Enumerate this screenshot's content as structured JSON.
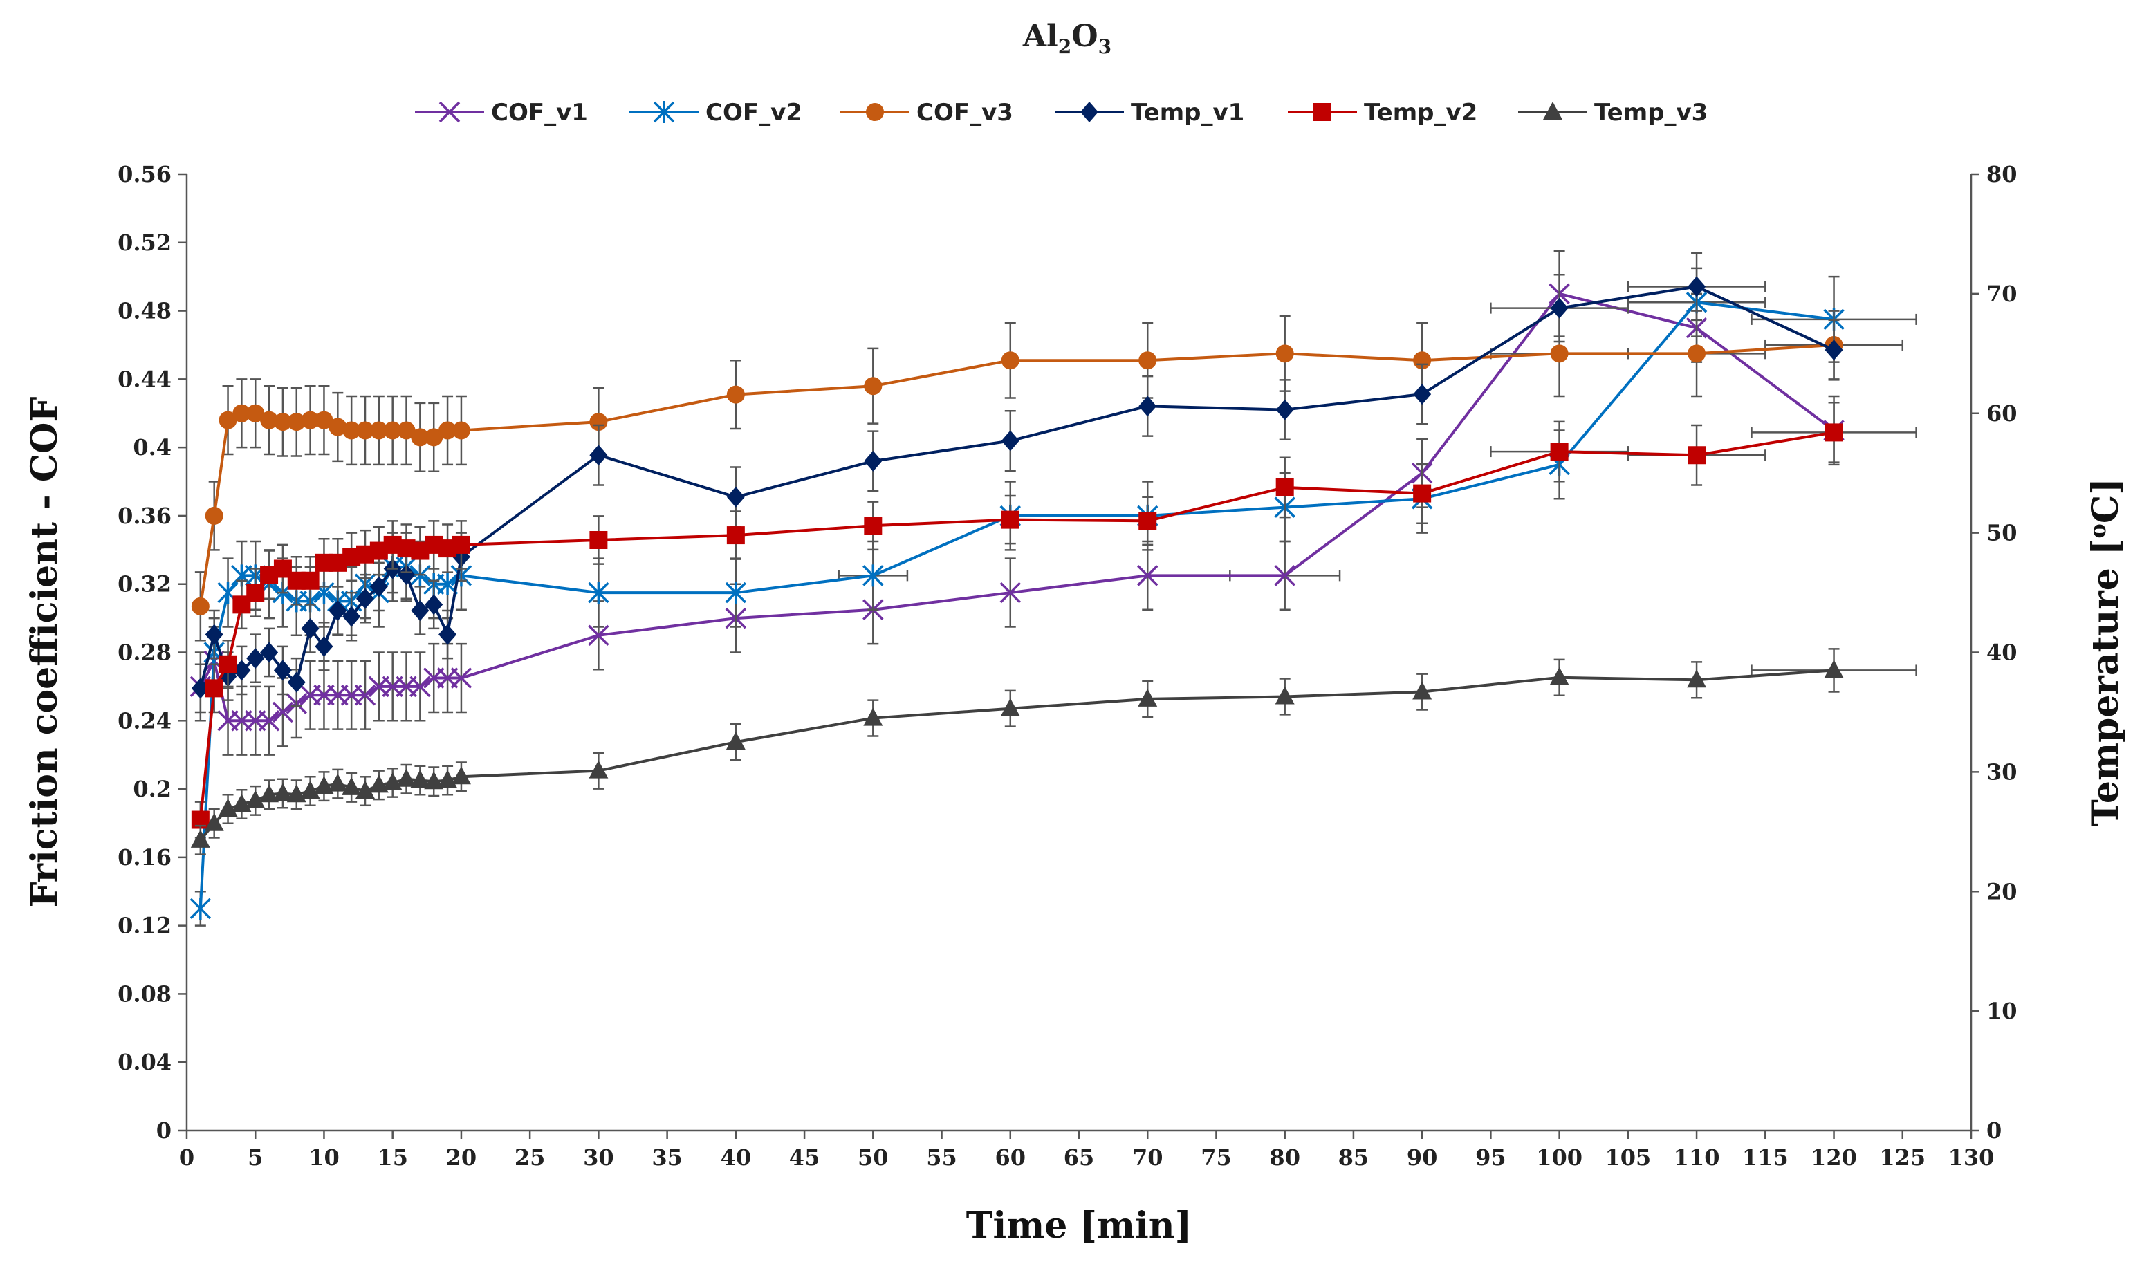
{
  "chart_data": {
    "type": "line",
    "title": "Al",
    "title_sub1": "2",
    "title_mid": "O",
    "title_sub2": "3",
    "xlabel": "Time [min]",
    "ylabel_left": "Friction coefficient - COF",
    "ylabel_right_prefix": "Temperature [",
    "ylabel_right_sup": "o",
    "ylabel_right_suffix": "C]",
    "xlim": [
      0,
      130
    ],
    "ylim_left": [
      0,
      0.56
    ],
    "ylim_right": [
      0,
      80
    ],
    "x_ticks": [
      "0",
      "5",
      "10",
      "15",
      "20",
      "25",
      "30",
      "35",
      "40",
      "45",
      "50",
      "55",
      "60",
      "65",
      "70",
      "75",
      "80",
      "85",
      "90",
      "95",
      "100",
      "105",
      "110",
      "115",
      "120",
      "125",
      "130"
    ],
    "y_left_ticks": [
      "0",
      "0.04",
      "0.08",
      "0.12",
      "0.16",
      "0.2",
      "0.24",
      "0.28",
      "0.32",
      "0.36",
      "0.4",
      "0.44",
      "0.48",
      "0.52",
      "0.56"
    ],
    "y_right_ticks": [
      "0",
      "10",
      "20",
      "30",
      "40",
      "50",
      "60",
      "70",
      "80"
    ],
    "series": [
      {
        "name": "COF_v1",
        "axis": "left",
        "color": "#7030A0",
        "marker": "x",
        "x": [
          1,
          2,
          3,
          4,
          5,
          6,
          7,
          8,
          9,
          10,
          11,
          12,
          13,
          14,
          15,
          16,
          17,
          18,
          19,
          20,
          30,
          40,
          50,
          60,
          70,
          80,
          90,
          100,
          110,
          120
        ],
        "y": [
          0.26,
          0.275,
          0.24,
          0.24,
          0.24,
          0.24,
          0.245,
          0.25,
          0.255,
          0.255,
          0.255,
          0.255,
          0.255,
          0.26,
          0.26,
          0.26,
          0.26,
          0.265,
          0.265,
          0.265,
          0.29,
          0.3,
          0.305,
          0.315,
          0.325,
          0.325,
          0.385,
          0.49,
          0.47,
          0.41
        ],
        "yerr": [
          0.02,
          0.02,
          0.02,
          0.02,
          0.02,
          0.02,
          0.02,
          0.02,
          0.02,
          0.02,
          0.02,
          0.02,
          0.02,
          0.02,
          0.02,
          0.02,
          0.02,
          0.02,
          0.02,
          0.02,
          0.02,
          0.02,
          0.02,
          0.02,
          0.02,
          0.02,
          0.02,
          0.025,
          0.02,
          0.02
        ],
        "xerr": [
          0,
          0,
          0,
          0,
          0,
          0,
          0,
          0,
          0,
          0,
          0,
          0,
          0,
          0,
          0,
          0,
          0,
          0,
          0,
          0,
          0,
          0,
          0,
          0,
          0,
          4,
          0,
          0,
          0,
          0
        ]
      },
      {
        "name": "COF_v2",
        "axis": "left",
        "color": "#0070C0",
        "marker": "asterisk",
        "x": [
          1,
          2,
          3,
          4,
          5,
          6,
          7,
          8,
          9,
          10,
          11,
          12,
          13,
          14,
          15,
          16,
          17,
          18,
          19,
          20,
          30,
          40,
          50,
          60,
          70,
          80,
          90,
          100,
          110,
          120
        ],
        "y": [
          0.13,
          0.28,
          0.315,
          0.325,
          0.325,
          0.32,
          0.315,
          0.31,
          0.31,
          0.315,
          0.31,
          0.31,
          0.32,
          0.315,
          0.33,
          0.33,
          0.325,
          0.32,
          0.32,
          0.325,
          0.315,
          0.315,
          0.325,
          0.36,
          0.36,
          0.365,
          0.37,
          0.39,
          0.485,
          0.475
        ],
        "yerr": [
          0.01,
          0.02,
          0.02,
          0.02,
          0.02,
          0.02,
          0.02,
          0.02,
          0.02,
          0.02,
          0.02,
          0.02,
          0.02,
          0.02,
          0.02,
          0.02,
          0.02,
          0.02,
          0.02,
          0.02,
          0.02,
          0.02,
          0.02,
          0.02,
          0.02,
          0.02,
          0.02,
          0.02,
          0.02,
          0.025
        ],
        "xerr": [
          0,
          0,
          0,
          0,
          0,
          0,
          0,
          0,
          0,
          0,
          0,
          0,
          0,
          0,
          0,
          0,
          0,
          0,
          0,
          0,
          0,
          0,
          2.5,
          0,
          0,
          0,
          0,
          0,
          5,
          6
        ]
      },
      {
        "name": "COF_v3",
        "axis": "left",
        "color": "#C55A11",
        "marker": "circle",
        "x": [
          1,
          2,
          3,
          4,
          5,
          6,
          7,
          8,
          9,
          10,
          11,
          12,
          13,
          14,
          15,
          16,
          17,
          18,
          19,
          20,
          30,
          40,
          50,
          60,
          70,
          80,
          90,
          100,
          110,
          120
        ],
        "y": [
          0.307,
          0.36,
          0.416,
          0.42,
          0.42,
          0.416,
          0.415,
          0.415,
          0.416,
          0.416,
          0.412,
          0.41,
          0.41,
          0.41,
          0.41,
          0.41,
          0.406,
          0.406,
          0.41,
          0.41,
          0.415,
          0.431,
          0.436,
          0.451,
          0.451,
          0.455,
          0.451,
          0.455,
          0.455,
          0.46
        ],
        "yerr": [
          0.02,
          0.02,
          0.02,
          0.02,
          0.02,
          0.02,
          0.02,
          0.02,
          0.02,
          0.02,
          0.02,
          0.02,
          0.02,
          0.02,
          0.02,
          0.02,
          0.02,
          0.02,
          0.02,
          0.02,
          0.02,
          0.02,
          0.022,
          0.022,
          0.022,
          0.022,
          0.022,
          0.025,
          0.025,
          0.02
        ],
        "xerr": [
          0,
          0,
          0,
          0,
          0,
          0,
          0,
          0,
          0,
          0,
          0,
          0,
          0,
          0,
          0,
          0,
          0,
          0,
          0,
          0,
          0,
          0,
          0,
          0,
          0,
          0,
          0,
          5,
          5,
          5
        ]
      },
      {
        "name": "Temp_v1",
        "axis": "right",
        "color": "#002060",
        "marker": "diamond",
        "x": [
          1,
          2,
          3,
          4,
          5,
          6,
          7,
          8,
          9,
          10,
          11,
          12,
          13,
          14,
          15,
          16,
          17,
          18,
          19,
          20,
          30,
          40,
          50,
          60,
          70,
          80,
          90,
          100,
          110,
          120
        ],
        "y": [
          37,
          41.5,
          38,
          38.5,
          39.5,
          40,
          38.5,
          37.5,
          42,
          40.5,
          43.5,
          43,
          44.5,
          45.5,
          47,
          46.5,
          43.5,
          44,
          41.5,
          48,
          56.5,
          53,
          56,
          57.7,
          60.6,
          60.3,
          61.6,
          68.8,
          70.6,
          65.3
        ],
        "yerr": [
          2,
          2,
          2,
          2,
          2,
          2,
          2,
          2,
          2,
          2,
          2,
          2,
          2,
          2,
          2,
          2,
          2,
          2,
          2,
          2,
          2.5,
          2.5,
          2.5,
          2.5,
          2.5,
          2.5,
          2.5,
          2.8,
          2.8,
          2.5
        ],
        "xerr": [
          0,
          0,
          0,
          0,
          0,
          0,
          0,
          0,
          0,
          0,
          0,
          0,
          0,
          0,
          0,
          0,
          0,
          0,
          0,
          0,
          0,
          0,
          0,
          0,
          0,
          0,
          0,
          5,
          5,
          0
        ]
      },
      {
        "name": "Temp_v2",
        "axis": "right",
        "color": "#C00000",
        "marker": "square",
        "x": [
          1,
          2,
          3,
          4,
          5,
          6,
          7,
          8,
          9,
          10,
          11,
          12,
          13,
          14,
          15,
          16,
          17,
          18,
          19,
          20,
          30,
          40,
          50,
          60,
          70,
          80,
          90,
          100,
          110,
          120
        ],
        "y": [
          26,
          37,
          39,
          44,
          45,
          46.5,
          47,
          46,
          46,
          47.5,
          47.5,
          48,
          48.2,
          48.5,
          49,
          48.7,
          48.5,
          49,
          48.7,
          49,
          49.4,
          49.8,
          50.6,
          51.1,
          51,
          53.8,
          53.3,
          56.8,
          56.5,
          58.4
        ],
        "yerr": [
          1.5,
          2,
          2,
          2,
          2,
          2,
          2,
          2,
          2,
          2,
          2,
          2,
          2,
          2,
          2,
          2,
          2,
          2,
          2,
          2,
          2,
          2,
          2,
          2,
          2,
          2.5,
          2.5,
          2.5,
          2.5,
          2.5
        ],
        "xerr": [
          0,
          0,
          0,
          0,
          0,
          0,
          0,
          0,
          0,
          0,
          0,
          0,
          0,
          0,
          0,
          0,
          0,
          0,
          0,
          0,
          0,
          0,
          0,
          0,
          0,
          0,
          0,
          5,
          5,
          6
        ]
      },
      {
        "name": "Temp_v3",
        "axis": "right",
        "color": "#404040",
        "marker": "triangle",
        "x": [
          1,
          2,
          3,
          4,
          5,
          6,
          7,
          8,
          9,
          10,
          11,
          12,
          13,
          14,
          15,
          16,
          17,
          18,
          19,
          20,
          30,
          40,
          50,
          60,
          70,
          80,
          90,
          100,
          110,
          120
        ],
        "y": [
          24.3,
          25.7,
          26.9,
          27.3,
          27.6,
          28.1,
          28.2,
          28.1,
          28.4,
          28.8,
          29,
          28.7,
          28.4,
          28.9,
          29.1,
          29.4,
          29.3,
          29.2,
          29.3,
          29.6,
          30.1,
          32.5,
          34.5,
          35.3,
          36.1,
          36.3,
          36.7,
          37.9,
          37.7,
          38.5
        ],
        "yerr": [
          1.2,
          1.2,
          1.2,
          1.2,
          1.2,
          1.2,
          1.2,
          1.2,
          1.2,
          1.2,
          1.2,
          1.2,
          1.2,
          1.2,
          1.2,
          1.2,
          1.2,
          1.2,
          1.2,
          1.2,
          1.5,
          1.5,
          1.5,
          1.5,
          1.5,
          1.5,
          1.5,
          1.5,
          1.5,
          1.8
        ],
        "xerr": [
          0,
          0,
          0,
          0,
          0,
          0,
          0,
          0,
          0,
          0,
          0,
          0,
          0,
          0,
          0,
          0,
          0,
          0,
          0,
          0,
          0,
          0,
          0,
          0,
          0,
          0,
          0,
          0,
          0,
          6
        ]
      }
    ]
  }
}
